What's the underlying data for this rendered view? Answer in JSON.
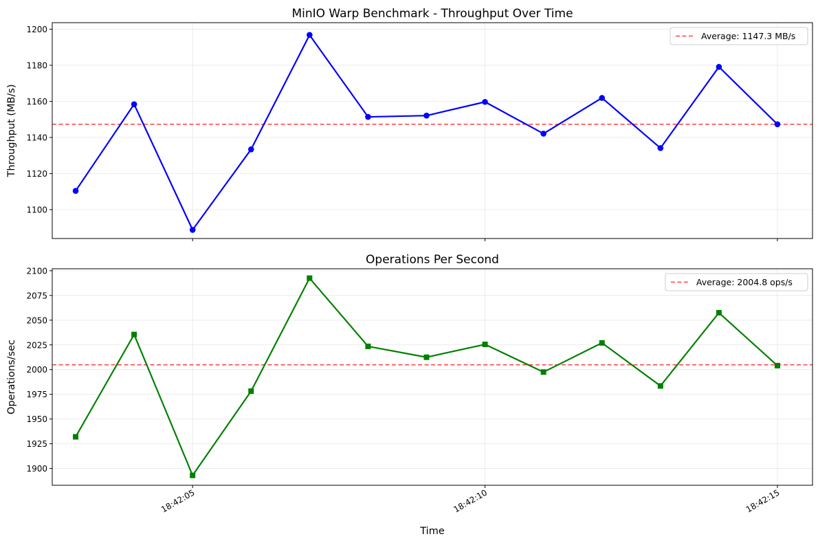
{
  "chart_data": [
    {
      "type": "line",
      "title": "MinIO Warp Benchmark - Throughput Over Time",
      "xlabel": "",
      "ylabel": "Throughput (MB/s)",
      "x": [
        "18:42:03",
        "18:42:04",
        "18:42:05",
        "18:42:06",
        "18:42:07",
        "18:42:08",
        "18:42:09",
        "18:42:10",
        "18:42:11",
        "18:42:12",
        "18:42:13",
        "18:42:14",
        "18:42:15"
      ],
      "xlim": [
        "18:42:02.6",
        "18:42:15.6"
      ],
      "xticks": [
        "18:42:05",
        "18:42:10",
        "18:42:15"
      ],
      "series": [
        {
          "values": [
            1110.4,
            1158.4,
            1088.8,
            1133.4,
            1196.8,
            1151.4,
            1152.1,
            1159.7,
            1142.1,
            1161.9,
            1134.1,
            1179.1,
            1147.3
          ],
          "color": "#0000ff",
          "marker": "circle"
        }
      ],
      "ylim": [
        1084,
        1203.6
      ],
      "yticks": [
        1100,
        1120,
        1140,
        1160,
        1180,
        1200
      ],
      "average": {
        "value": 1147.3,
        "label": "Average: 1147.3 MB/s",
        "color": "#ff0000"
      },
      "legend": "top-right",
      "grid": true
    },
    {
      "type": "line",
      "title": "Operations Per Second",
      "xlabel": "Time",
      "ylabel": "Operations/sec",
      "x": [
        "18:42:03",
        "18:42:04",
        "18:42:05",
        "18:42:06",
        "18:42:07",
        "18:42:08",
        "18:42:09",
        "18:42:10",
        "18:42:11",
        "18:42:12",
        "18:42:13",
        "18:42:14",
        "18:42:15"
      ],
      "xlim": [
        "18:42:02.6",
        "18:42:15.6"
      ],
      "xticks": [
        "18:42:05",
        "18:42:10",
        "18:42:15"
      ],
      "series": [
        {
          "values": [
            1932,
            2035.5,
            1893,
            1978.2,
            2092.5,
            2023.5,
            2012.5,
            2025.5,
            1997.5,
            2027,
            1983.5,
            2057.5,
            2004
          ],
          "color": "#008000",
          "marker": "square"
        }
      ],
      "ylim": [
        1883,
        2102
      ],
      "yticks": [
        1900,
        1925,
        1950,
        1975,
        2000,
        2025,
        2050,
        2075,
        2100
      ],
      "average": {
        "value": 2004.8,
        "label": "Average: 2004.8 ops/s",
        "color": "#ff0000"
      },
      "legend": "top-right",
      "grid": true
    }
  ]
}
